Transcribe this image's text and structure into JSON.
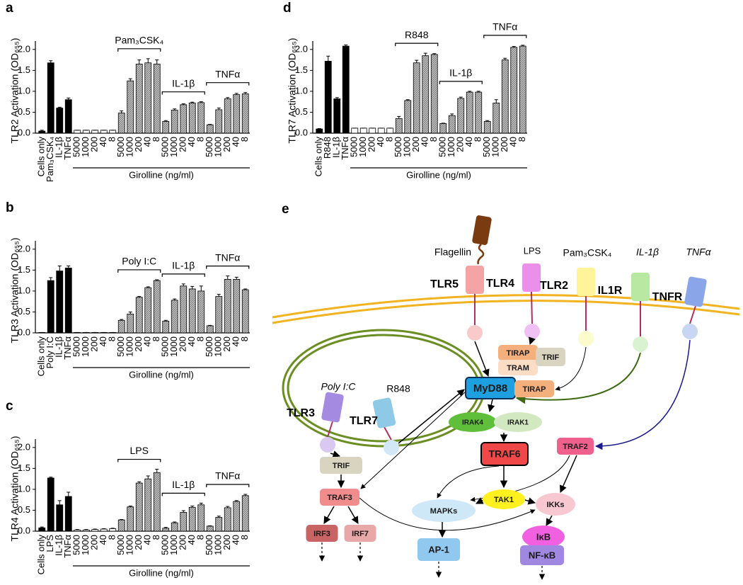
{
  "chart_data": [
    {
      "type": "bar",
      "panel": "a",
      "ylabel": "TLR2 Activation (OD₆₅₅)",
      "xlabel": "Girolline (ng/ml)",
      "categories": [
        "Cells only",
        "Pam₃CSK₄",
        "IL-1β",
        "TNFα",
        "5000",
        "1000",
        "200",
        "40",
        "8",
        "5000",
        "1000",
        "200",
        "40",
        "8",
        "5000",
        "1000",
        "200",
        "40",
        "8",
        "5000",
        "1000",
        "200",
        "40",
        "8"
      ],
      "values": [
        0.05,
        1.68,
        0.6,
        0.8,
        0.07,
        0.07,
        0.07,
        0.07,
        0.07,
        0.48,
        1.25,
        1.65,
        1.68,
        1.65,
        0.28,
        0.55,
        0.68,
        0.72,
        0.73,
        0.2,
        0.56,
        0.82,
        0.92,
        0.94
      ],
      "errors": [
        0.02,
        0.05,
        0.02,
        0.04,
        0,
        0,
        0,
        0,
        0,
        0.05,
        0.05,
        0.1,
        0.1,
        0.1,
        0.02,
        0.03,
        0.02,
        0.02,
        0.02,
        0.01,
        0.04,
        0.03,
        0.03,
        0.03
      ],
      "group_labels": [
        "Pam₃CSK₄",
        "IL-1β",
        "TNFα"
      ],
      "ylim": [
        0,
        2.2
      ],
      "yticks": [
        {
          "value": 0,
          "label": "0.0"
        },
        0.5,
        {
          "value": 1,
          "label": "1.0"
        },
        1.5,
        {
          "value": 2,
          "label": "2.0"
        }
      ],
      "colors": [
        "#000000",
        "#ffffff",
        "#b5b5b5"
      ]
    },
    {
      "type": "bar",
      "panel": "b",
      "ylabel": "TLR3 Activation (OD₆₅₅)",
      "xlabel": "Girolline (ng/ml)",
      "categories": [
        "Cells only",
        "Poly I:C",
        "IL-1β",
        "TNFα",
        "5000",
        "1000",
        "200",
        "40",
        "8",
        "5000",
        "1000",
        "200",
        "40",
        "8",
        "5000",
        "1000",
        "200",
        "40",
        "8",
        "5000",
        "1000",
        "200",
        "40",
        "8"
      ],
      "values": [
        0.01,
        1.25,
        1.48,
        1.55,
        0.01,
        0.01,
        0.01,
        0.01,
        0.01,
        0.3,
        0.45,
        0.85,
        1.08,
        1.25,
        0.28,
        0.78,
        1.12,
        1.05,
        1.0,
        0.17,
        0.87,
        1.28,
        1.28,
        1.03
      ],
      "errors": [
        0,
        0.07,
        0.12,
        0.05,
        0,
        0,
        0,
        0,
        0,
        0.02,
        0.05,
        0.02,
        0.02,
        0.02,
        0.02,
        0.03,
        0.05,
        0.06,
        0.12,
        0.01,
        0.05,
        0.08,
        0.05,
        0.02
      ],
      "group_labels": [
        "Poly I:C",
        "IL-1β",
        "TNFα"
      ],
      "ylim": [
        0,
        2.2
      ],
      "yticks": [
        {
          "value": 0,
          "label": "0.0"
        },
        0.5,
        {
          "value": 1,
          "label": "1.0"
        },
        1.5,
        {
          "value": 2,
          "label": "2.0"
        }
      ],
      "colors": [
        "#000000",
        "#ffffff",
        "#b5b5b5"
      ]
    },
    {
      "type": "bar",
      "panel": "c",
      "ylabel": "TLR4 Activation (OD₆₅₅)",
      "xlabel": "Girolline (ng/ml)",
      "categories": [
        "Cells only",
        "LPS",
        "IL-1β",
        "TNFα",
        "5000",
        "1000",
        "200",
        "40",
        "8",
        "5000",
        "1000",
        "200",
        "40",
        "8",
        "5000",
        "1000",
        "200",
        "40",
        "8",
        "5000",
        "1000",
        "200",
        "40",
        "8"
      ],
      "values": [
        0.08,
        1.27,
        0.63,
        0.83,
        0.03,
        0.03,
        0.04,
        0.05,
        0.06,
        0.27,
        0.58,
        1.15,
        1.25,
        1.4,
        0.07,
        0.2,
        0.45,
        0.57,
        0.63,
        0.12,
        0.33,
        0.56,
        0.71,
        0.85
      ],
      "errors": [
        0.02,
        0.02,
        0.1,
        0.1,
        0.01,
        0.01,
        0.01,
        0.01,
        0.01,
        0.01,
        0.02,
        0.03,
        0.07,
        0.08,
        0.02,
        0.02,
        0.04,
        0.03,
        0.04,
        0.01,
        0.03,
        0.03,
        0.02,
        0.03
      ],
      "group_labels": [
        "LPS",
        "IL-1β",
        "TNFα"
      ],
      "ylim": [
        0,
        2.2
      ],
      "yticks": [
        {
          "value": 0,
          "label": "0.0"
        },
        0.5,
        {
          "value": 1,
          "label": "1.0"
        },
        1.5,
        {
          "value": 2,
          "label": "2.0"
        }
      ],
      "colors": [
        "#000000",
        "#ffffff",
        "#b5b5b5"
      ]
    },
    {
      "type": "bar",
      "panel": "d",
      "ylabel": "TLR7 Activation (OD₆₅₅)",
      "xlabel": "Girolline (ng/ml)",
      "categories": [
        "Cells only",
        "R848",
        "IL-1β",
        "TNFα",
        "5000",
        "1000",
        "200",
        "40",
        "8",
        "5000",
        "1000",
        "200",
        "40",
        "8",
        "5000",
        "1000",
        "200",
        "40",
        "8",
        "5000",
        "1000",
        "200",
        "40",
        "8"
      ],
      "values": [
        0.1,
        1.72,
        0.82,
        2.08,
        0.12,
        0.12,
        0.12,
        0.12,
        0.12,
        0.35,
        0.78,
        1.68,
        1.85,
        1.88,
        0.23,
        0.42,
        0.83,
        0.98,
        0.98,
        0.28,
        0.72,
        1.75,
        2.05,
        2.08
      ],
      "errors": [
        0.01,
        0.12,
        0.03,
        0.03,
        0,
        0,
        0,
        0,
        0,
        0.05,
        0.02,
        0.06,
        0.06,
        0.02,
        0.01,
        0.04,
        0.03,
        0.02,
        0.02,
        0.02,
        0.08,
        0.04,
        0.02,
        0.02
      ],
      "group_labels": [
        "R848",
        "IL-1β",
        "TNFα"
      ],
      "ylim": [
        0,
        2.2
      ],
      "yticks": [
        {
          "value": 0,
          "label": "0.0"
        },
        0.5,
        {
          "value": 1,
          "label": "1.0"
        },
        1.5,
        {
          "value": 2,
          "label": "2.0"
        }
      ],
      "colors": [
        "#000000",
        "#ffffff",
        "#b5b5b5"
      ]
    }
  ],
  "diagram": {
    "panel": "e",
    "nodes": [
      "Flagellin",
      "LPS",
      "Pam₃CSK₄",
      "IL-1β",
      "TNFα",
      "TLR5",
      "TLR4",
      "TLR2",
      "IL1R",
      "TNFR",
      "Poly I:C",
      "R848",
      "TLR3",
      "TLR7",
      "TIRAP",
      "TRIF",
      "TRAM",
      "MyD88",
      "TIRAP",
      "IRAK4",
      "IRAK1",
      "TRAF6",
      "TRAF2",
      "TRIF",
      "TRAF3",
      "TAK1",
      "MAPKs",
      "IKKs",
      "IκB",
      "NF-κB",
      "AP-1",
      "IRF3",
      "IRF7"
    ]
  }
}
